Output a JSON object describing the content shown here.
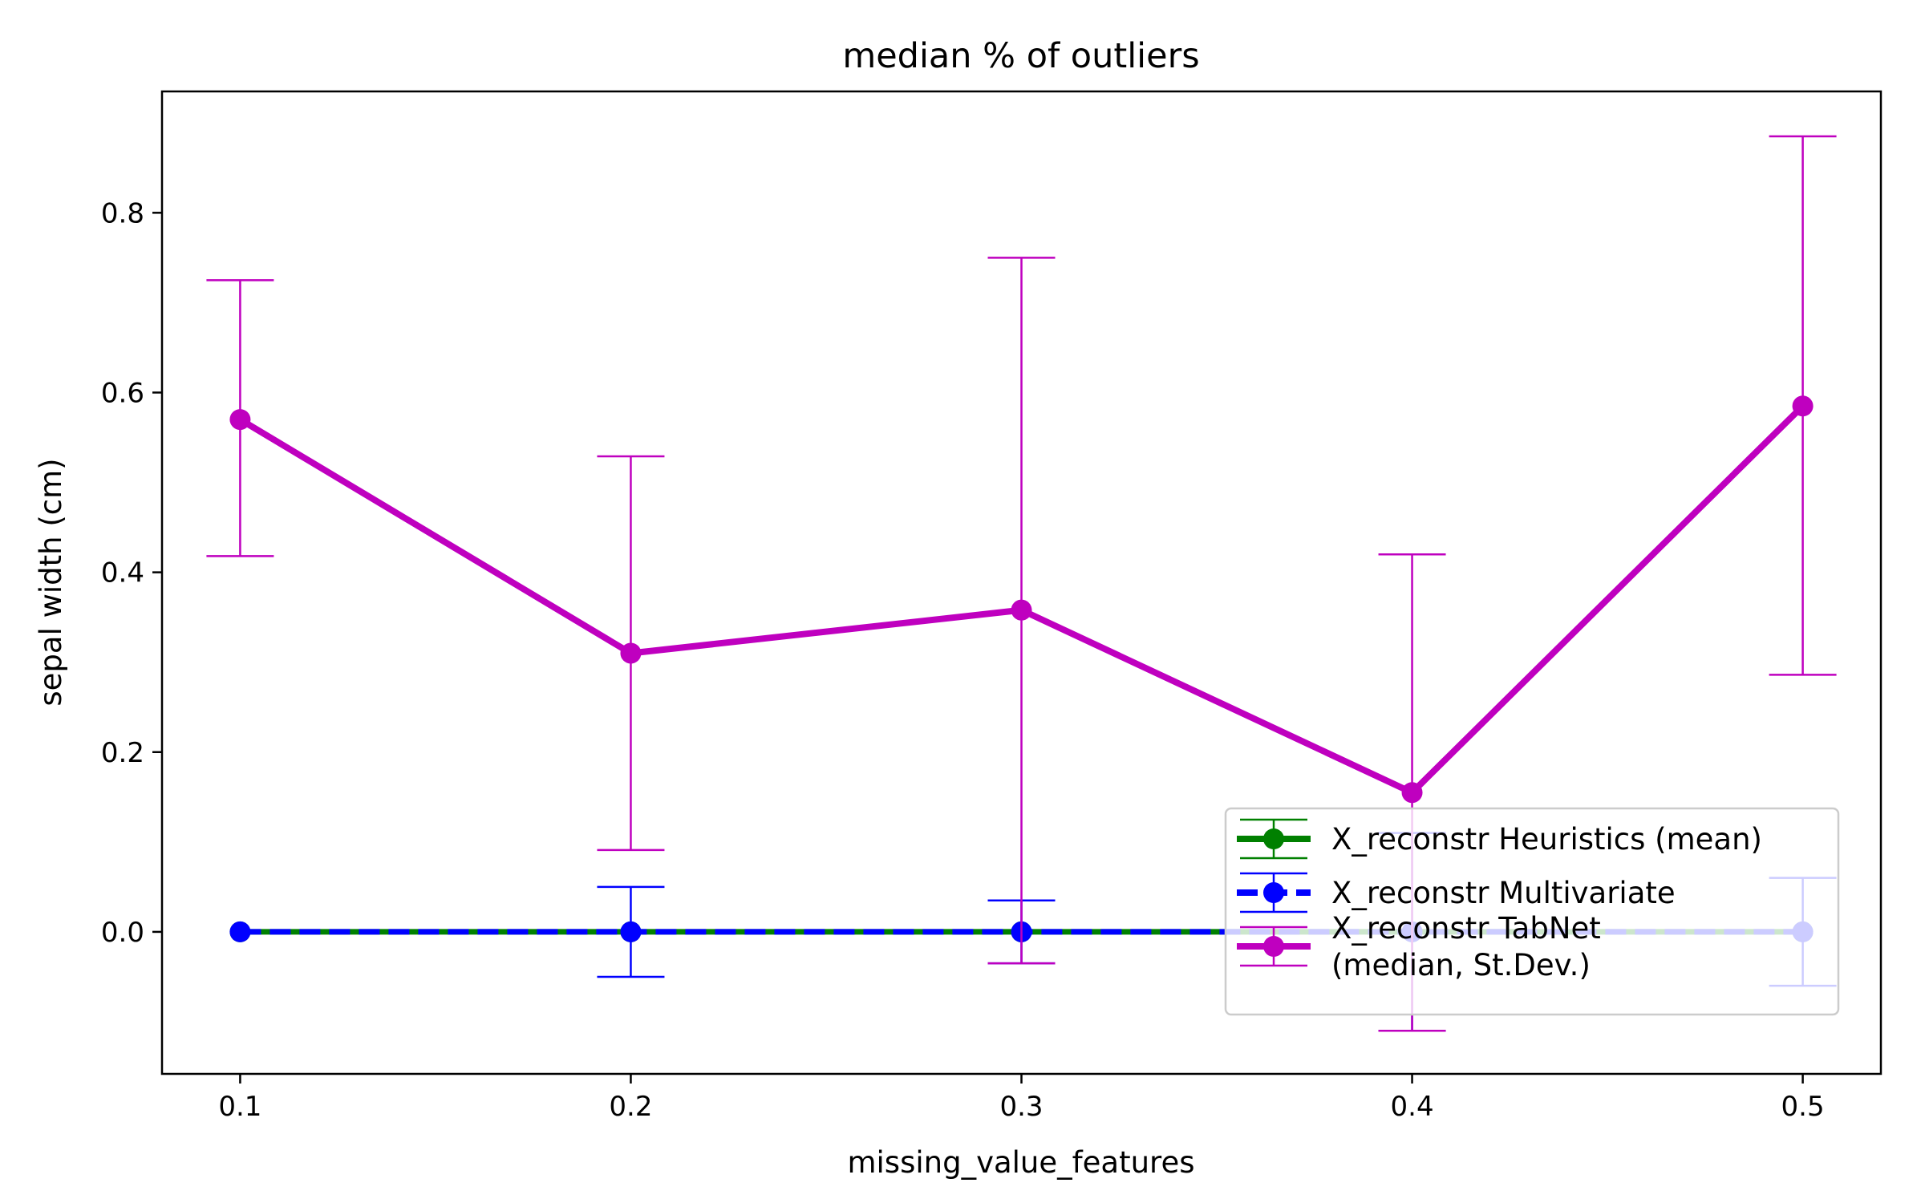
{
  "chart_data": {
    "type": "line",
    "title": "median % of outliers",
    "xlabel": "missing_value_features",
    "ylabel": "sepal width (cm)",
    "x": [
      0.1,
      0.2,
      0.3,
      0.4,
      0.5
    ],
    "xticks": [
      "0.1",
      "0.2",
      "0.3",
      "0.4",
      "0.5"
    ],
    "yticks": [
      "0.0",
      "0.2",
      "0.4",
      "0.6",
      "0.8"
    ],
    "xlim": [
      0.08,
      0.52
    ],
    "ylim": [
      -0.158,
      0.935
    ],
    "grid": false,
    "legend_position": "lower-right",
    "series": [
      {
        "name": "X_reconstr Heuristics (mean)",
        "color": "#008000",
        "line_style": "solid",
        "y": [
          0.0,
          0.0,
          0.0,
          0.0,
          0.0
        ],
        "err_low": [
          0.0,
          0.0,
          0.0,
          0.0,
          0.0
        ],
        "err_high": [
          0.0,
          0.0,
          0.0,
          0.0,
          0.0
        ]
      },
      {
        "name": "X_reconstr Multivariate",
        "color": "#0000ff",
        "line_style": "dashed",
        "y": [
          0.0,
          0.0,
          0.0,
          0.0,
          0.0
        ],
        "err_low": [
          0.0,
          -0.05,
          -0.035,
          -0.11,
          -0.06
        ],
        "err_high": [
          0.0,
          0.05,
          0.035,
          0.11,
          0.06
        ]
      },
      {
        "name": "X_reconstr TabNet\n(median, St.Dev.)",
        "color": "#bf00bf",
        "line_style": "solid",
        "y": [
          0.57,
          0.31,
          0.358,
          0.155,
          0.585
        ],
        "err_low": [
          0.418,
          0.091,
          -0.035,
          -0.11,
          0.286
        ],
        "err_high": [
          0.725,
          0.529,
          0.75,
          0.42,
          0.885
        ]
      }
    ]
  }
}
